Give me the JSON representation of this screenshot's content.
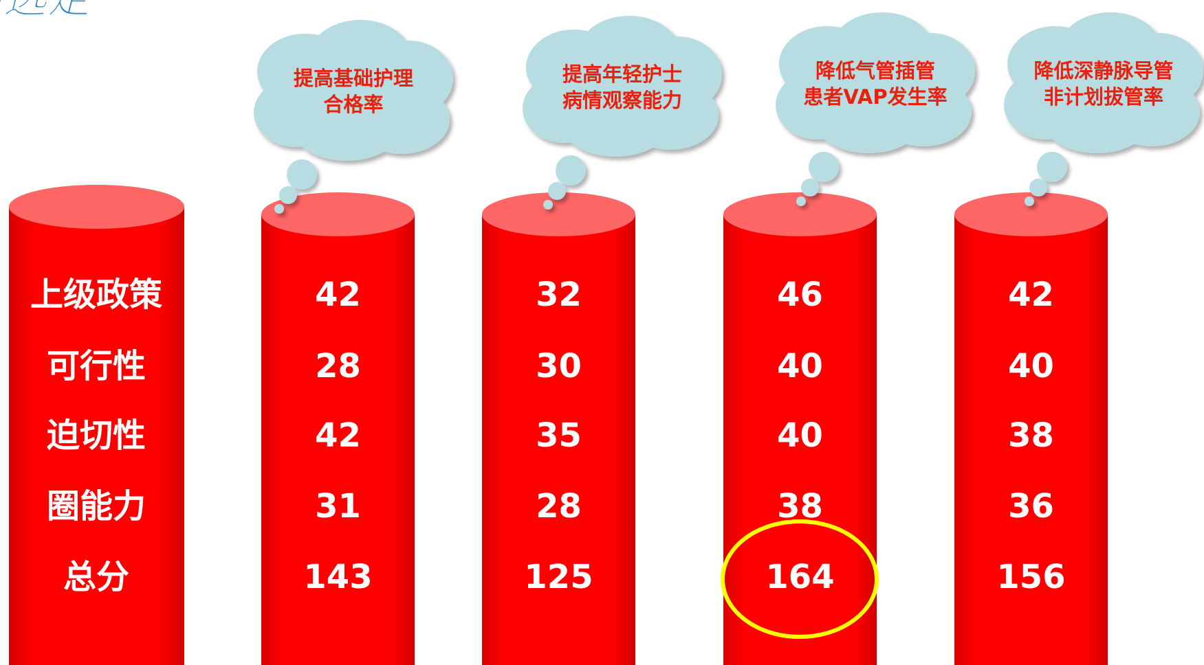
{
  "header": {
    "title": "题选定"
  },
  "row_labels": [
    "上级政策",
    "可行性",
    "迫切性",
    "圈能力",
    "总分"
  ],
  "themes": [
    {
      "label_lines": [
        "提高基础护理",
        "合格率"
      ],
      "scores": [
        42,
        28,
        42,
        31,
        143
      ]
    },
    {
      "label_lines": [
        "提高年轻护士",
        "病情观察能力"
      ],
      "scores": [
        32,
        30,
        35,
        28,
        125
      ]
    },
    {
      "label_lines": [
        "降低气管插管",
        "患者VAP发生率"
      ],
      "scores": [
        46,
        40,
        40,
        38,
        164
      ]
    },
    {
      "label_lines": [
        "降低深静脉导管",
        "非计划拔管率"
      ],
      "scores": [
        42,
        40,
        38,
        36,
        156
      ]
    }
  ]
}
